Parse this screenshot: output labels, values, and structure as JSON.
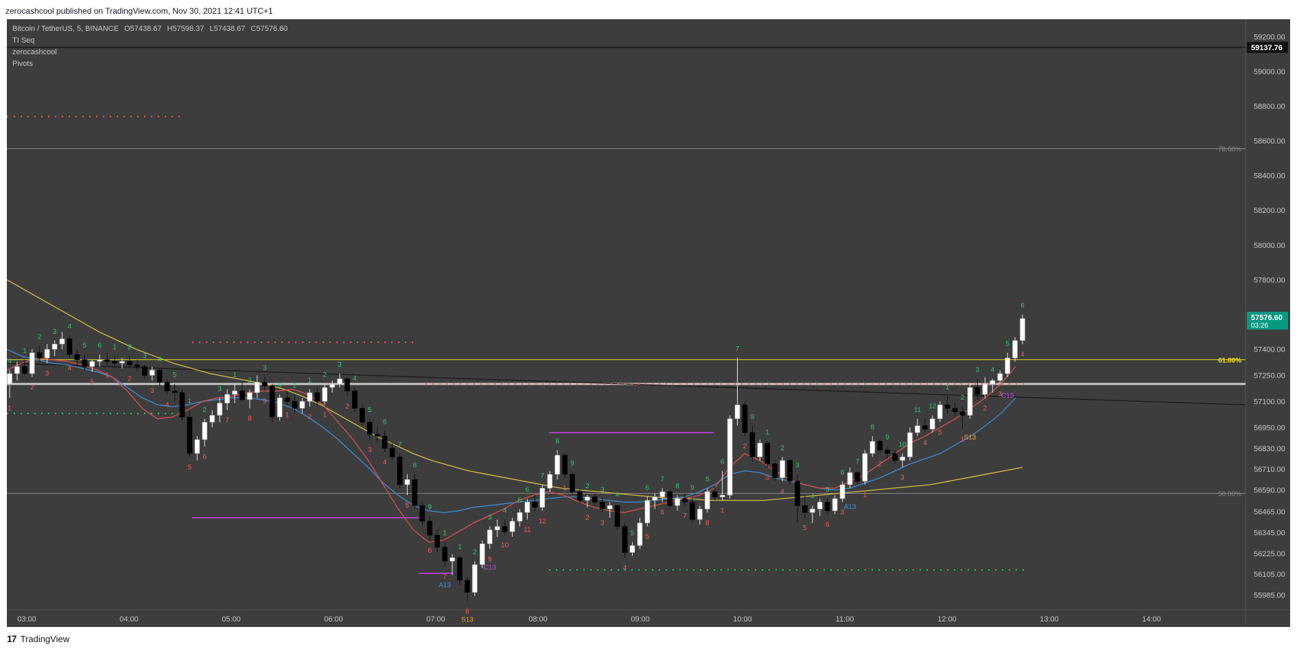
{
  "header": {
    "published_text": "zerocashcool published on TradingView.com, Nov 30, 2021 12:41 UTC+1"
  },
  "legend": {
    "symbol": "Bitcoin / TetherUS, 5, BINANCE",
    "o_label": "O",
    "o_value": "57438.67",
    "h_label": "H",
    "h_value": "57598.37",
    "l_label": "L",
    "l_value": "57438.67",
    "c_label": "C",
    "c_value": "57576.60",
    "indicators": [
      "TI Seq",
      "zerocashcool",
      "Pivots"
    ]
  },
  "footer": {
    "brand": "TradingView",
    "logo_text": "17"
  },
  "colors": {
    "background": "#3d3d3d",
    "up_candle": "#ffffff",
    "down_candle": "#000000",
    "ema_red": "#e05050",
    "ema_blue": "#3d8fd9",
    "sma_yellow": "#d8c040",
    "seq_green": "#2ecc71",
    "seq_red": "#ff5a5a",
    "pivot_purple": "#b03cc8",
    "fib_yellow": "#f0e020",
    "current_price_badge": "#089981"
  },
  "chart_data": {
    "type": "candlestick",
    "symbol": "Bitcoin / TetherUS",
    "interval": "5",
    "exchange": "BINANCE",
    "x_ticks": [
      "03:00",
      "04:00",
      "05:00",
      "06:00",
      "07:00",
      "08:00",
      "09:00",
      "10:00",
      "11:00",
      "12:00",
      "13:00",
      "14:00"
    ],
    "y_ticks": [
      "59200.00",
      "59000.00",
      "58800.00",
      "58600.00",
      "58400.00",
      "58200.00",
      "58000.00",
      "57800.00",
      "57400.00",
      "57250.00",
      "57100.00",
      "56950.00",
      "56830.00",
      "56710.00",
      "56590.00",
      "56465.00",
      "56345.00",
      "56225.00",
      "56105.00",
      "55985.00"
    ],
    "y_tick_values": [
      59200,
      59000,
      58800,
      58600,
      58400,
      58200,
      58000,
      57800,
      57400,
      57250,
      57100,
      56950,
      56830,
      56710,
      56590,
      56465,
      56345,
      56225,
      56105,
      55985
    ],
    "price_marker": {
      "label": "59137.76",
      "value": 59137.76
    },
    "current_price": {
      "label": "57576.60",
      "countdown": "03:26",
      "value": 57576.6
    },
    "fib_levels": [
      {
        "label": "78.60%",
        "value": 58555
      },
      {
        "label": "61.80%",
        "value": 57340
      },
      {
        "label": "50.00%",
        "value": 56570
      }
    ],
    "candles": [
      [
        57200,
        57280,
        57120,
        57260
      ],
      [
        57260,
        57330,
        57220,
        57300
      ],
      [
        57300,
        57340,
        57250,
        57260
      ],
      [
        57260,
        57400,
        57240,
        57380
      ],
      [
        57380,
        57420,
        57330,
        57350
      ],
      [
        57350,
        57430,
        57320,
        57400
      ],
      [
        57400,
        57450,
        57360,
        57430
      ],
      [
        57430,
        57500,
        57400,
        57460
      ],
      [
        57460,
        57480,
        57350,
        57370
      ],
      [
        57370,
        57400,
        57300,
        57340
      ],
      [
        57340,
        57370,
        57280,
        57300
      ],
      [
        57300,
        57340,
        57270,
        57330
      ],
      [
        57330,
        57370,
        57300,
        57340
      ],
      [
        57340,
        57380,
        57310,
        57330
      ],
      [
        57330,
        57360,
        57300,
        57320
      ],
      [
        57320,
        57350,
        57290,
        57330
      ],
      [
        57330,
        57360,
        57290,
        57310
      ],
      [
        57310,
        57340,
        57270,
        57300
      ],
      [
        57300,
        57310,
        57230,
        57250
      ],
      [
        57250,
        57300,
        57220,
        57280
      ],
      [
        57280,
        57290,
        57190,
        57210
      ],
      [
        57210,
        57230,
        57140,
        57160
      ],
      [
        57160,
        57200,
        57100,
        57150
      ],
      [
        57150,
        57170,
        56990,
        57010
      ],
      [
        57010,
        57050,
        56780,
        56800
      ],
      [
        56800,
        56900,
        56760,
        56880
      ],
      [
        56880,
        57000,
        56840,
        56980
      ],
      [
        56980,
        57050,
        56950,
        57020
      ],
      [
        57020,
        57120,
        56980,
        57090
      ],
      [
        57090,
        57170,
        57050,
        57140
      ],
      [
        57140,
        57200,
        57090,
        57160
      ],
      [
        57160,
        57220,
        57100,
        57110
      ],
      [
        57110,
        57170,
        57060,
        57150
      ],
      [
        57150,
        57250,
        57120,
        57210
      ],
      [
        57210,
        57240,
        57160,
        57190
      ],
      [
        57190,
        57200,
        56980,
        57010
      ],
      [
        57010,
        57140,
        56990,
        57120
      ],
      [
        57120,
        57160,
        57080,
        57100
      ],
      [
        57100,
        57140,
        57040,
        57060
      ],
      [
        57060,
        57120,
        57030,
        57100
      ],
      [
        57100,
        57170,
        57070,
        57150
      ],
      [
        57150,
        57180,
        57080,
        57100
      ],
      [
        57100,
        57200,
        57080,
        57180
      ],
      [
        57180,
        57220,
        57150,
        57200
      ],
      [
        57200,
        57260,
        57180,
        57230
      ],
      [
        57230,
        57240,
        57130,
        57160
      ],
      [
        57160,
        57180,
        57040,
        57060
      ],
      [
        57060,
        57080,
        56960,
        56980
      ],
      [
        56980,
        57000,
        56880,
        56910
      ],
      [
        56910,
        56950,
        56860,
        56900
      ],
      [
        56900,
        56930,
        56810,
        56830
      ],
      [
        56830,
        56860,
        56760,
        56780
      ],
      [
        56780,
        56800,
        56600,
        56620
      ],
      [
        56620,
        56680,
        56560,
        56650
      ],
      [
        56650,
        56680,
        56480,
        56500
      ],
      [
        56500,
        56520,
        56390,
        56410
      ],
      [
        56410,
        56440,
        56300,
        56330
      ],
      [
        56330,
        56360,
        56230,
        56260
      ],
      [
        56260,
        56290,
        56150,
        56180
      ],
      [
        56180,
        56220,
        56100,
        56200
      ],
      [
        56200,
        56210,
        56040,
        56070
      ],
      [
        56070,
        56090,
        55950,
        56000
      ],
      [
        56000,
        56180,
        55980,
        56160
      ],
      [
        56160,
        56300,
        56140,
        56280
      ],
      [
        56280,
        56380,
        56250,
        56360
      ],
      [
        56360,
        56420,
        56320,
        56380
      ],
      [
        56380,
        56420,
        56330,
        56350
      ],
      [
        56350,
        56430,
        56320,
        56410
      ],
      [
        56410,
        56480,
        56380,
        56460
      ],
      [
        56460,
        56540,
        56420,
        56520
      ],
      [
        56520,
        56560,
        56470,
        56490
      ],
      [
        56490,
        56620,
        56470,
        56600
      ],
      [
        56600,
        56700,
        56580,
        56680
      ],
      [
        56680,
        56820,
        56650,
        56790
      ],
      [
        56790,
        56800,
        56660,
        56680
      ],
      [
        56680,
        56690,
        56560,
        56580
      ],
      [
        56580,
        56600,
        56510,
        56530
      ],
      [
        56530,
        56560,
        56490,
        56550
      ],
      [
        56550,
        56570,
        56500,
        56520
      ],
      [
        56520,
        56540,
        56460,
        56480
      ],
      [
        56480,
        56520,
        56430,
        56500
      ],
      [
        56500,
        56510,
        56360,
        56380
      ],
      [
        56380,
        56400,
        56200,
        56230
      ],
      [
        56230,
        56290,
        56210,
        56270
      ],
      [
        56270,
        56430,
        56250,
        56400
      ],
      [
        56400,
        56550,
        56380,
        56530
      ],
      [
        56530,
        56570,
        56480,
        56550
      ],
      [
        56550,
        56600,
        56520,
        56580
      ],
      [
        56580,
        56590,
        56480,
        56500
      ],
      [
        56500,
        56560,
        56470,
        56540
      ],
      [
        56540,
        56570,
        56500,
        56520
      ],
      [
        56520,
        56550,
        56400,
        56420
      ],
      [
        56420,
        56500,
        56390,
        56480
      ],
      [
        56480,
        56600,
        56460,
        56580
      ],
      [
        56580,
        56610,
        56530,
        56550
      ],
      [
        56550,
        56700,
        56530,
        56560
      ],
      [
        56560,
        57020,
        56540,
        57000
      ],
      [
        57000,
        57350,
        56960,
        57080
      ],
      [
        57080,
        57100,
        56900,
        56920
      ],
      [
        56920,
        56960,
        56750,
        56780
      ],
      [
        56780,
        56880,
        56760,
        56860
      ],
      [
        56860,
        56870,
        56720,
        56740
      ],
      [
        56740,
        56760,
        56640,
        56660
      ],
      [
        56660,
        56780,
        56640,
        56760
      ],
      [
        56760,
        56770,
        56620,
        56640
      ],
      [
        56640,
        56680,
        56400,
        56500
      ],
      [
        56500,
        56560,
        56430,
        56460
      ],
      [
        56460,
        56500,
        56400,
        56480
      ],
      [
        56480,
        56540,
        56440,
        56520
      ],
      [
        56520,
        56540,
        56450,
        56470
      ],
      [
        56470,
        56560,
        56450,
        56540
      ],
      [
        56540,
        56640,
        56520,
        56620
      ],
      [
        56620,
        56720,
        56600,
        56690
      ],
      [
        56690,
        56700,
        56620,
        56640
      ],
      [
        56640,
        56820,
        56620,
        56800
      ],
      [
        56800,
        56900,
        56780,
        56870
      ],
      [
        56870,
        56880,
        56800,
        56820
      ],
      [
        56820,
        56840,
        56770,
        56800
      ],
      [
        56800,
        56820,
        56740,
        56760
      ],
      [
        56760,
        56800,
        56720,
        56780
      ],
      [
        56780,
        56950,
        56760,
        56920
      ],
      [
        56920,
        57000,
        56900,
        56960
      ],
      [
        56960,
        57000,
        56920,
        56940
      ],
      [
        56940,
        57020,
        56920,
        57000
      ],
      [
        57000,
        57100,
        56980,
        57080
      ],
      [
        57080,
        57130,
        57030,
        57060
      ],
      [
        57060,
        57090,
        57010,
        57040
      ],
      [
        57040,
        57070,
        56940,
        57020
      ],
      [
        57020,
        57200,
        57000,
        57180
      ],
      [
        57180,
        57230,
        57110,
        57140
      ],
      [
        57140,
        57240,
        57120,
        57200
      ],
      [
        57200,
        57230,
        57150,
        57220
      ],
      [
        57220,
        57280,
        57200,
        57260
      ],
      [
        57260,
        57380,
        57240,
        57350
      ],
      [
        57350,
        57470,
        57330,
        57450
      ],
      [
        57450,
        57600,
        57430,
        57577
      ]
    ],
    "ema_red_values": [
      57280,
      57320,
      57350,
      57340,
      57330,
      57310,
      57280,
      57240,
      57160,
      57060,
      57000,
      57010,
      57050,
      57100,
      57120,
      57130,
      57150,
      57160,
      57160,
      57170,
      57140,
      57080,
      56980,
      56880,
      56760,
      56620,
      56480,
      56360,
      56290,
      56300,
      56350,
      56400,
      56440,
      56480,
      56530,
      56560,
      56580,
      56560,
      56520,
      56490,
      56470,
      56460,
      56480,
      56500,
      56520,
      56540,
      56560,
      56600,
      56720,
      56800,
      56760,
      56700,
      56650,
      56620,
      56600,
      56600,
      56640,
      56680,
      56740,
      56800,
      56860,
      56900,
      56950,
      57000,
      57060,
      57120,
      57200,
      57300
    ],
    "ema_blue_values": [
      57400,
      57360,
      57340,
      57320,
      57310,
      57290,
      57270,
      57240,
      57180,
      57120,
      57080,
      57070,
      57080,
      57100,
      57110,
      57120,
      57120,
      57110,
      57090,
      57060,
      57010,
      56950,
      56880,
      56800,
      56720,
      56630,
      56560,
      56500,
      56470,
      56460,
      56470,
      56490,
      56500,
      56510,
      56520,
      56530,
      56540,
      56550,
      56550,
      56540,
      56530,
      56520,
      56520,
      56530,
      56540,
      56550,
      56580,
      56620,
      56680,
      56700,
      56690,
      56660,
      56640,
      56620,
      56600,
      56590,
      56600,
      56630,
      56660,
      56700,
      56740,
      56770,
      56800,
      56850,
      56900,
      56960,
      57030,
      57120
    ],
    "sma_yellow_values": [
      57800,
      57740,
      57680,
      57620,
      57560,
      57500,
      57450,
      57400,
      57360,
      57320,
      57290,
      57260,
      57240,
      57220,
      57200,
      57170,
      57130,
      57080,
      57020,
      56960,
      56900,
      56850,
      56800,
      56760,
      56730,
      56700,
      56680,
      56660,
      56640,
      56620,
      56600,
      56590,
      56580,
      56570,
      56560,
      56550,
      56540,
      56540,
      56530,
      56530,
      56530,
      56530,
      56540,
      56550,
      56560,
      56570,
      56580,
      56590,
      56600,
      56610,
      56620,
      56640,
      56660,
      56680,
      56700,
      56720
    ],
    "seq_green_labels": [
      "4",
      "1",
      "2",
      "3",
      "4",
      "5",
      "6",
      "1",
      "2",
      "3",
      "4",
      "5",
      "1",
      "2",
      "3",
      "1",
      "2",
      "3",
      "9",
      "1",
      "1",
      "2",
      "3",
      "4",
      "5",
      "6",
      "7",
      "8",
      "9",
      "1",
      "1",
      "2",
      "3",
      "4",
      "5",
      "6",
      "7",
      "8",
      "9",
      "2",
      "3",
      "4",
      "5",
      "6",
      "7",
      "8",
      "9",
      "5",
      "6",
      "7",
      "8",
      "1",
      "2",
      "3",
      "4",
      "5",
      "6",
      "7",
      "8",
      "9",
      "10",
      "11",
      "12",
      "1",
      "2",
      "3",
      "4",
      "5",
      "6"
    ],
    "seq_red_labels": [
      "1",
      "2",
      "3",
      "4",
      "5",
      "1",
      "2",
      "3",
      "4",
      "5",
      "6",
      "7",
      "8",
      "9",
      "1",
      "2",
      "1",
      "2",
      "3",
      "4",
      "5",
      "6",
      "7",
      "8",
      "9",
      "10",
      "11",
      "12",
      "1",
      "2",
      "3",
      "4",
      "5",
      "6",
      "7",
      "8",
      "1",
      "2",
      "3",
      "4",
      "5",
      "6",
      "3",
      "1",
      "2",
      "3",
      "4",
      "5",
      "1",
      "2",
      "3",
      "4"
    ],
    "seq_markers": [
      {
        "label": "A13",
        "color": "blue"
      },
      {
        "label": "S13",
        "color": "orange"
      },
      {
        "label": "C13",
        "color": "purple"
      },
      {
        "label": "A13",
        "color": "blue"
      },
      {
        "label": "S13",
        "color": "orange"
      },
      {
        "label": "C13",
        "color": "purple"
      }
    ]
  }
}
